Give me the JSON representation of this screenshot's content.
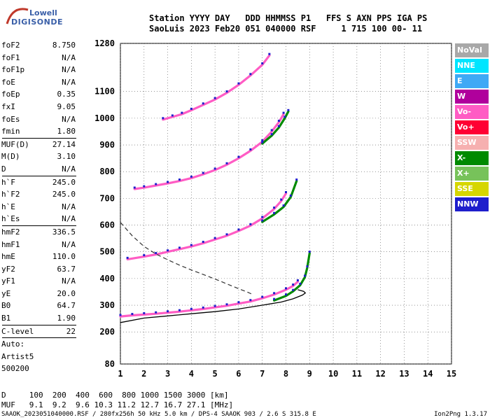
{
  "logo": {
    "line1": "Lowell",
    "line2": "DIGISONDE"
  },
  "header": {
    "line1": "Station YYYY DAY   DDD HHMMSS P1   FFS S AXN PPS IGA PS",
    "line2": "SaoLuis 2023 Feb20 051 040000 RSF     1 715 100 00- 11"
  },
  "params": {
    "group1": [
      {
        "label": "foF2",
        "value": "8.750"
      },
      {
        "label": "foF1",
        "value": "N/A"
      },
      {
        "label": "foF1p",
        "value": "N/A"
      },
      {
        "label": "foE",
        "value": "N/A"
      },
      {
        "label": "foEp",
        "value": "0.35"
      },
      {
        "label": "fxI",
        "value": "9.05"
      },
      {
        "label": "foEs",
        "value": "N/A"
      },
      {
        "label": "fmin",
        "value": "1.80"
      }
    ],
    "group2": [
      {
        "label": "MUF(D)",
        "value": "27.14"
      },
      {
        "label": "M(D)",
        "value": "3.10"
      },
      {
        "label": "D",
        "value": "N/A"
      }
    ],
    "group3": [
      {
        "label": "h`F",
        "value": "245.0"
      },
      {
        "label": "h`F2",
        "value": "245.0"
      },
      {
        "label": "h`E",
        "value": "N/A"
      },
      {
        "label": "h`Es",
        "value": "N/A"
      }
    ],
    "group4": [
      {
        "label": "hmF2",
        "value": "336.5"
      },
      {
        "label": "hmF1",
        "value": "N/A"
      },
      {
        "label": "hmE",
        "value": "110.0"
      },
      {
        "label": "yF2",
        "value": "63.7"
      },
      {
        "label": "yF1",
        "value": "N/A"
      },
      {
        "label": "yE",
        "value": "20.0"
      },
      {
        "label": "B0",
        "value": "64.7"
      },
      {
        "label": "B1",
        "value": "1.90"
      }
    ],
    "group5": [
      {
        "label": "C-level",
        "value": "22"
      }
    ],
    "auto": [
      "Auto:",
      "Artist5",
      "500200"
    ]
  },
  "legend": [
    {
      "label": "NoVal",
      "color": "#a8a8a8"
    },
    {
      "label": "NNE",
      "color": "#00e5ff"
    },
    {
      "label": "E",
      "color": "#3fa9f5"
    },
    {
      "label": "W",
      "color": "#b0009c"
    },
    {
      "label": "Vo-",
      "color": "#ff5cc4"
    },
    {
      "label": "Vo+",
      "color": "#ff0033"
    },
    {
      "label": "SSW",
      "color": "#f6b0b0"
    },
    {
      "label": "X-",
      "color": "#008a00"
    },
    {
      "label": "X+",
      "color": "#77c25a"
    },
    {
      "label": "SSE",
      "color": "#d6d600"
    },
    {
      "label": "NNW",
      "color": "#1e1ecc"
    }
  ],
  "dtable": {
    "line1": "D     100  200  400  600  800 1000 1500 3000 [km]",
    "line2": "MUF   9.1  9.2  9.6 10.3 11.2 12.7 16.7 27.1 [MHz]"
  },
  "footer": "SAAOK_2023051040000.RSF / 280fx256h 50 kHz 5.0 km / DPS-4 SAAOK 903 / 2.6 S 315.8 E",
  "version": "Ion2Png 1.3.17",
  "chart_data": {
    "type": "scatter",
    "xlim": [
      1,
      15
    ],
    "ylim": [
      80,
      1280
    ],
    "xticks": [
      1,
      2,
      3,
      4,
      5,
      6,
      7,
      8,
      9,
      10,
      11,
      12,
      13,
      14,
      15
    ],
    "yticks": [
      80,
      200,
      300,
      400,
      500,
      600,
      700,
      800,
      900,
      1000,
      1100,
      1280
    ],
    "grid": true,
    "traces": [
      {
        "name": "o1",
        "color": "#ff5cc4",
        "points": [
          [
            1.0,
            258
          ],
          [
            1.5,
            262
          ],
          [
            2,
            265
          ],
          [
            2.5,
            268
          ],
          [
            3,
            272
          ],
          [
            3.5,
            276
          ],
          [
            4,
            281
          ],
          [
            4.5,
            286
          ],
          [
            5,
            292
          ],
          [
            5.5,
            298
          ],
          [
            6,
            306
          ],
          [
            6.5,
            314
          ],
          [
            7,
            326
          ],
          [
            7.5,
            340
          ],
          [
            8,
            358
          ],
          [
            8.3,
            372
          ],
          [
            8.5,
            388
          ]
        ]
      },
      {
        "name": "x1",
        "color": "#008a00",
        "points": [
          [
            7.5,
            318
          ],
          [
            8,
            335
          ],
          [
            8.3,
            352
          ],
          [
            8.6,
            375
          ],
          [
            8.8,
            405
          ],
          [
            8.9,
            440
          ],
          [
            9.0,
            495
          ]
        ]
      },
      {
        "name": "o2",
        "color": "#ff5cc4",
        "points": [
          [
            1.3,
            472
          ],
          [
            2,
            482
          ],
          [
            2.5,
            490
          ],
          [
            3,
            500
          ],
          [
            3.5,
            510
          ],
          [
            4,
            520
          ],
          [
            4.5,
            532
          ],
          [
            5,
            546
          ],
          [
            5.5,
            560
          ],
          [
            6,
            578
          ],
          [
            6.5,
            598
          ],
          [
            7,
            625
          ],
          [
            7.5,
            660
          ],
          [
            7.8,
            690
          ],
          [
            8.0,
            718
          ]
        ]
      },
      {
        "name": "x2",
        "color": "#008a00",
        "points": [
          [
            7.0,
            612
          ],
          [
            7.5,
            640
          ],
          [
            7.9,
            668
          ],
          [
            8.2,
            705
          ],
          [
            8.45,
            765
          ]
        ]
      },
      {
        "name": "o3",
        "color": "#ff5cc4",
        "points": [
          [
            1.6,
            735
          ],
          [
            2,
            740
          ],
          [
            2.5,
            748
          ],
          [
            3,
            756
          ],
          [
            3.5,
            765
          ],
          [
            4,
            776
          ],
          [
            4.5,
            790
          ],
          [
            5,
            806
          ],
          [
            5.5,
            826
          ],
          [
            6,
            850
          ],
          [
            6.5,
            878
          ],
          [
            7,
            912
          ],
          [
            7.4,
            950
          ],
          [
            7.7,
            985
          ],
          [
            7.9,
            1015
          ]
        ]
      },
      {
        "name": "x3",
        "color": "#008a00",
        "points": [
          [
            7.0,
            905
          ],
          [
            7.4,
            935
          ],
          [
            7.7,
            965
          ],
          [
            7.95,
            1000
          ],
          [
            8.1,
            1025
          ]
        ]
      },
      {
        "name": "o4",
        "color": "#ff5cc4",
        "points": [
          [
            2.8,
            995
          ],
          [
            3.2,
            1005
          ],
          [
            3.6,
            1015
          ],
          [
            4,
            1030
          ],
          [
            4.5,
            1050
          ],
          [
            5,
            1070
          ],
          [
            5.5,
            1095
          ],
          [
            6,
            1125
          ],
          [
            6.5,
            1160
          ],
          [
            7,
            1200
          ],
          [
            7.3,
            1235
          ]
        ]
      }
    ],
    "profile_solid": [
      [
        1.0,
        235
      ],
      [
        2,
        252
      ],
      [
        3,
        260
      ],
      [
        4,
        268
      ],
      [
        5,
        276
      ],
      [
        6,
        286
      ],
      [
        7,
        300
      ],
      [
        7.8,
        312
      ],
      [
        8.3,
        324
      ],
      [
        8.7,
        338
      ],
      [
        8.82,
        346
      ],
      [
        8.75,
        352
      ],
      [
        8.5,
        358
      ]
    ],
    "profile_dashed": [
      [
        1.0,
        610
      ],
      [
        1.5,
        560
      ],
      [
        2,
        520
      ],
      [
        2.5,
        492
      ],
      [
        3,
        470
      ],
      [
        3.5,
        450
      ],
      [
        4,
        432
      ],
      [
        4.5,
        415
      ],
      [
        5,
        398
      ],
      [
        5.5,
        380
      ],
      [
        6,
        362
      ],
      [
        6.4,
        348
      ],
      [
        6.6,
        340
      ]
    ]
  }
}
